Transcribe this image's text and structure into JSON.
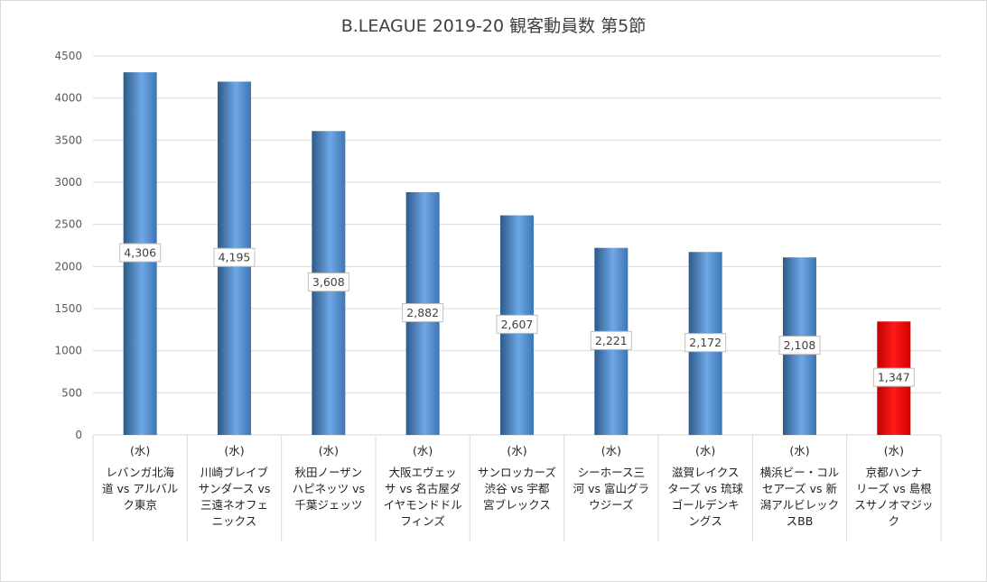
{
  "chart_data": {
    "type": "bar",
    "title": "B.LEAGUE 2019-20 観客動員数 第5節",
    "xlabel": "",
    "ylabel": "",
    "ylim": [
      0,
      4500
    ],
    "yticks": [
      "0",
      "500",
      "1000",
      "1500",
      "2000",
      "2500",
      "3000",
      "3500",
      "4000",
      "4500"
    ],
    "grid": true,
    "legend": "none",
    "categories": [
      {
        "day": "(水)",
        "name": "レバンガ北海\n道 vs アルバル\nク東京"
      },
      {
        "day": "(水)",
        "name": "川崎ブレイブ\nサンダース vs\n三遠ネオフェ\nニックス"
      },
      {
        "day": "(水)",
        "name": "秋田ノーザン\nハピネッツ vs\n千葉ジェッツ"
      },
      {
        "day": "(水)",
        "name": "大阪エヴェッ\nサ vs 名古屋ダ\nイヤモンドドル\nフィンズ"
      },
      {
        "day": "(水)",
        "name": "サンロッカーズ\n渋谷 vs 宇都\n宮ブレックス"
      },
      {
        "day": "(水)",
        "name": "シーホース三\n河 vs 富山グラ\nウジーズ"
      },
      {
        "day": "(水)",
        "name": "滋賀レイクス\nターズ vs 琉球\nゴールデンキ\nングス"
      },
      {
        "day": "(水)",
        "name": "横浜ビー・コル\nセアーズ vs 新\n潟アルビレック\nスBB"
      },
      {
        "day": "(水)",
        "name": "京都ハンナ\nリーズ vs 島根\nスサノオマジッ\nク"
      }
    ],
    "values": [
      4306,
      4195,
      3608,
      2882,
      2607,
      2221,
      2172,
      2108,
      1347
    ],
    "data_labels": [
      "4,306",
      "4,195",
      "3,608",
      "2,882",
      "2,607",
      "2,221",
      "2,172",
      "2,108",
      "1,347"
    ],
    "highlight_index": 8,
    "colors": {
      "bar": "#5b9bd5",
      "highlight": "#ff0000",
      "grid": "#d9d9d9",
      "axis_text": "#595959"
    }
  }
}
